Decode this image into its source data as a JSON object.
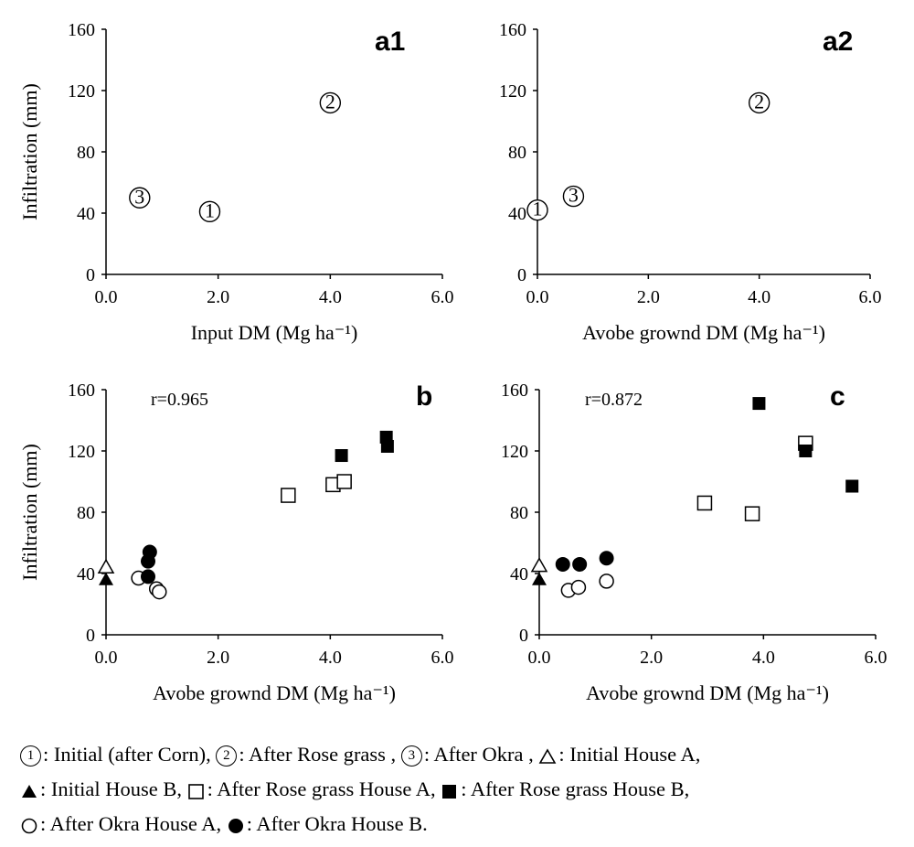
{
  "chart_data": [
    {
      "id": "a1",
      "type": "scatter",
      "panel_label": "a1",
      "xlabel": "Input DM (Mg ha⁻¹)",
      "ylabel": "Infiltration (mm)",
      "xlim": [
        0,
        6
      ],
      "ylim": [
        0,
        160
      ],
      "xticks": [
        "0.0",
        "2.0",
        "4.0",
        "6.0"
      ],
      "yticks": [
        "0",
        "40",
        "80",
        "120",
        "160"
      ],
      "r_text": "",
      "series": [
        {
          "name": "Initial (after Corn)",
          "marker": "num",
          "label": "1",
          "points": [
            [
              1.85,
              41
            ]
          ]
        },
        {
          "name": "After Rose grass",
          "marker": "num",
          "label": "2",
          "points": [
            [
              4.0,
              112
            ]
          ]
        },
        {
          "name": "After Okra",
          "marker": "num",
          "label": "3",
          "points": [
            [
              0.6,
              50
            ]
          ]
        }
      ]
    },
    {
      "id": "a2",
      "type": "scatter",
      "panel_label": "a2",
      "xlabel": "Avobe grownd DM (Mg ha⁻¹)",
      "ylabel": "",
      "xlim": [
        0,
        6
      ],
      "ylim": [
        0,
        160
      ],
      "xticks": [
        "0.0",
        "2.0",
        "4.0",
        "6.0"
      ],
      "yticks": [
        "0",
        "40",
        "80",
        "120",
        "160"
      ],
      "r_text": "",
      "series": [
        {
          "name": "Initial (after Corn)",
          "marker": "num",
          "label": "1",
          "points": [
            [
              0.0,
              42
            ]
          ]
        },
        {
          "name": "After Rose grass",
          "marker": "num",
          "label": "2",
          "points": [
            [
              4.0,
              112
            ]
          ]
        },
        {
          "name": "After Okra",
          "marker": "num",
          "label": "3",
          "points": [
            [
              0.65,
              51
            ]
          ]
        }
      ]
    },
    {
      "id": "b",
      "type": "scatter",
      "panel_label": "b",
      "xlabel": "Avobe grownd DM (Mg ha⁻¹)",
      "ylabel": "Infiltration (mm)",
      "xlim": [
        0,
        6
      ],
      "ylim": [
        0,
        160
      ],
      "xticks": [
        "0.0",
        "2.0",
        "4.0",
        "6.0"
      ],
      "yticks": [
        "0",
        "40",
        "80",
        "120",
        "160"
      ],
      "r_text": "r=0.965",
      "series": [
        {
          "name": "Initial House A",
          "marker": "triangle-open",
          "points": [
            [
              0.0,
              44
            ]
          ]
        },
        {
          "name": "Initial House B",
          "marker": "triangle-filled",
          "points": [
            [
              0.0,
              36
            ]
          ]
        },
        {
          "name": "After Rose grass House A",
          "marker": "square-open",
          "points": [
            [
              3.25,
              91
            ],
            [
              4.05,
              98
            ],
            [
              4.25,
              100
            ]
          ]
        },
        {
          "name": "After Rose grass House B",
          "marker": "square-filled",
          "points": [
            [
              4.2,
              117
            ],
            [
              5.0,
              129
            ],
            [
              5.02,
              123
            ]
          ]
        },
        {
          "name": "After Okra House A",
          "marker": "circle-open",
          "points": [
            [
              0.58,
              37
            ],
            [
              0.9,
              30
            ],
            [
              0.95,
              28
            ]
          ]
        },
        {
          "name": "After Okra House B",
          "marker": "circle-filled",
          "points": [
            [
              0.78,
              54
            ],
            [
              0.75,
              48
            ],
            [
              0.75,
              38
            ]
          ]
        }
      ]
    },
    {
      "id": "c",
      "type": "scatter",
      "panel_label": "c",
      "xlabel": "Avobe grownd DM (Mg ha⁻¹)",
      "ylabel": "",
      "xlim": [
        0,
        6
      ],
      "ylim": [
        0,
        160
      ],
      "xticks": [
        "0.0",
        "2.0",
        "4.0",
        "6.0"
      ],
      "yticks": [
        "0",
        "40",
        "80",
        "120",
        "160"
      ],
      "r_text": "r=0.872",
      "series": [
        {
          "name": "Initial House A",
          "marker": "triangle-open",
          "points": [
            [
              0.0,
              45
            ]
          ]
        },
        {
          "name": "Initial House B",
          "marker": "triangle-filled",
          "points": [
            [
              0.0,
              36
            ]
          ]
        },
        {
          "name": "After Rose grass House A",
          "marker": "square-open",
          "points": [
            [
              2.95,
              86
            ],
            [
              3.8,
              79
            ],
            [
              4.75,
              125
            ]
          ]
        },
        {
          "name": "After Rose grass House B",
          "marker": "square-filled",
          "points": [
            [
              3.92,
              151
            ],
            [
              4.75,
              120
            ],
            [
              5.58,
              97
            ]
          ]
        },
        {
          "name": "After Okra House A",
          "marker": "circle-open",
          "points": [
            [
              0.52,
              29
            ],
            [
              0.7,
              31
            ],
            [
              1.2,
              35
            ]
          ]
        },
        {
          "name": "After Okra House B",
          "marker": "circle-filled",
          "points": [
            [
              0.42,
              46
            ],
            [
              0.72,
              46
            ],
            [
              1.2,
              50
            ]
          ]
        }
      ]
    }
  ],
  "legend": {
    "line1": {
      "item1": "Initial (after Corn),",
      "item2": "After Rose grass ,",
      "item3": "After Okra ,",
      "item4": "Initial House A,"
    },
    "line2": {
      "item1": "Initial House B,",
      "item2": "After Rose grass House A,",
      "item3": "After Rose grass House B,"
    },
    "line3": {
      "item1": "After Okra House A,",
      "item2": "After Okra House B."
    }
  }
}
